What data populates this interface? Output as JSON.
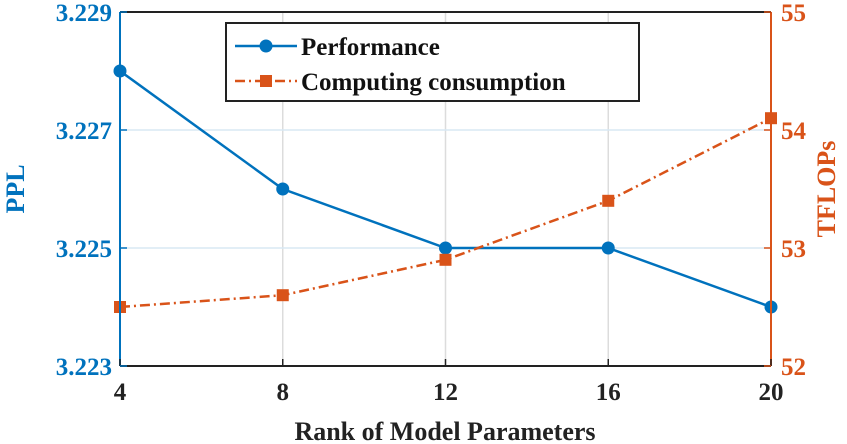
{
  "chart_data": {
    "type": "line",
    "xlabel": "Rank of Model Parameters",
    "ylabel_left": "PPL",
    "ylabel_right": "TFLOPs",
    "x": [
      4,
      8,
      12,
      16,
      20
    ],
    "xlim": [
      4,
      20
    ],
    "x_ticks": [
      "4",
      "8",
      "12",
      "16",
      "20"
    ],
    "ylim_left": [
      3.223,
      3.229
    ],
    "y_ticks_left": [
      "3.223",
      "3.225",
      "3.227",
      "3.229"
    ],
    "ylim_right": [
      52,
      55
    ],
    "y_ticks_right": [
      "52",
      "53",
      "54",
      "55"
    ],
    "grid": true,
    "legend_position": "top-center",
    "series": [
      {
        "name": "Performance",
        "axis": "left",
        "values": [
          3.228,
          3.226,
          3.225,
          3.225,
          3.224
        ],
        "marker": "circle",
        "line_style": "solid",
        "color": "#0072BD"
      },
      {
        "name": "Computing consumption",
        "axis": "right",
        "values": [
          52.5,
          52.6,
          52.9,
          53.4,
          54.1
        ],
        "marker": "square",
        "line_style": "dash-dot",
        "color": "#D95319"
      }
    ]
  }
}
